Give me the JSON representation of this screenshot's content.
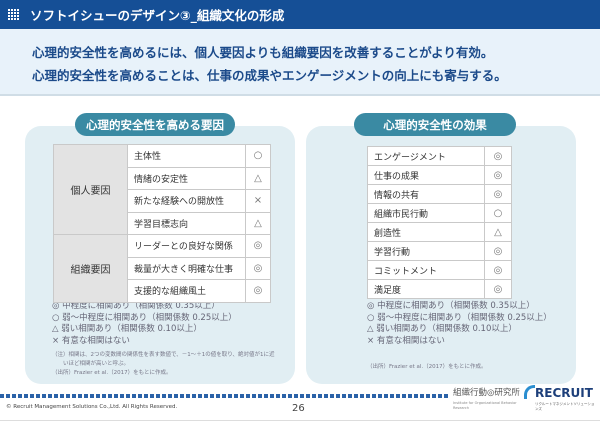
{
  "header": {
    "title": "ソフトイシューのデザイン③_組織文化の形成",
    "icon": "grid-icon"
  },
  "summary": [
    "心理的安全性を高めるには、個人要因よりも組織要因を改善することがより有効。",
    "心理的安全性を高めることは、仕事の成果やエンゲージメントの向上にも寄与する。"
  ],
  "left": {
    "title": "心理的安全性を高める要因",
    "groups": [
      {
        "label": "個人要因",
        "rows": [
          [
            "主体性",
            "○"
          ],
          [
            "情緒の安定性",
            "△"
          ],
          [
            "新たな経験への開放性",
            "×"
          ],
          [
            "学習目標志向",
            "△"
          ]
        ]
      },
      {
        "label": "組織要因",
        "rows": [
          [
            "リーダーとの良好な関係",
            "◎"
          ],
          [
            "裁量が大きく明確な仕事",
            "◎"
          ],
          [
            "支援的な組織風土",
            "◎"
          ]
        ]
      }
    ],
    "legend": [
      "◎ 中程度に相関あり（相関係数 0.35以上）",
      "○ 弱～中程度に相関あり（相関係数 0.25以上）",
      "△ 弱い相関あり（相関係数 0.10以上）",
      "× 有意な相関はない"
    ],
    "note1": "（注）相関は、2つの変数間の関係性を表す数値で、－1～＋1の値を取り、絶対値が1に近",
    "note2": "　　いほど相関が高いと呼ぶ。",
    "source": "（出所）Frazier et al.（2017）をもとに作成。"
  },
  "right": {
    "title": "心理的安全性の効果",
    "rows": [
      [
        "エンゲージメント",
        "◎"
      ],
      [
        "仕事の成果",
        "◎"
      ],
      [
        "情報の共有",
        "◎"
      ],
      [
        "組織市民行動",
        "○"
      ],
      [
        "創造性",
        "△"
      ],
      [
        "学習行動",
        "◎"
      ],
      [
        "コミットメント",
        "◎"
      ],
      [
        "満足度",
        "◎"
      ]
    ],
    "legend": [
      "◎ 中程度に相関あり（相関係数 0.35以上）",
      "○ 弱～中程度に相関あり（相関係数 0.25以上）",
      "△ 弱い相関あり（相関係数 0.10以上）",
      "× 有意な相関はない"
    ],
    "source": "（出所）Frazier et al.（2017）をもとに作成。"
  },
  "footer": {
    "copyright": "© Recruit Management Solutions Co.,Ltd. All Rights Reserved.",
    "page": "26",
    "logo1": "組織行動◎研究所",
    "logo1_sub": "Institute for Organizational Behavior Research",
    "logo2": "RECRUIT",
    "logo2_sub": "リクルートマネジメントソリューションズ"
  }
}
